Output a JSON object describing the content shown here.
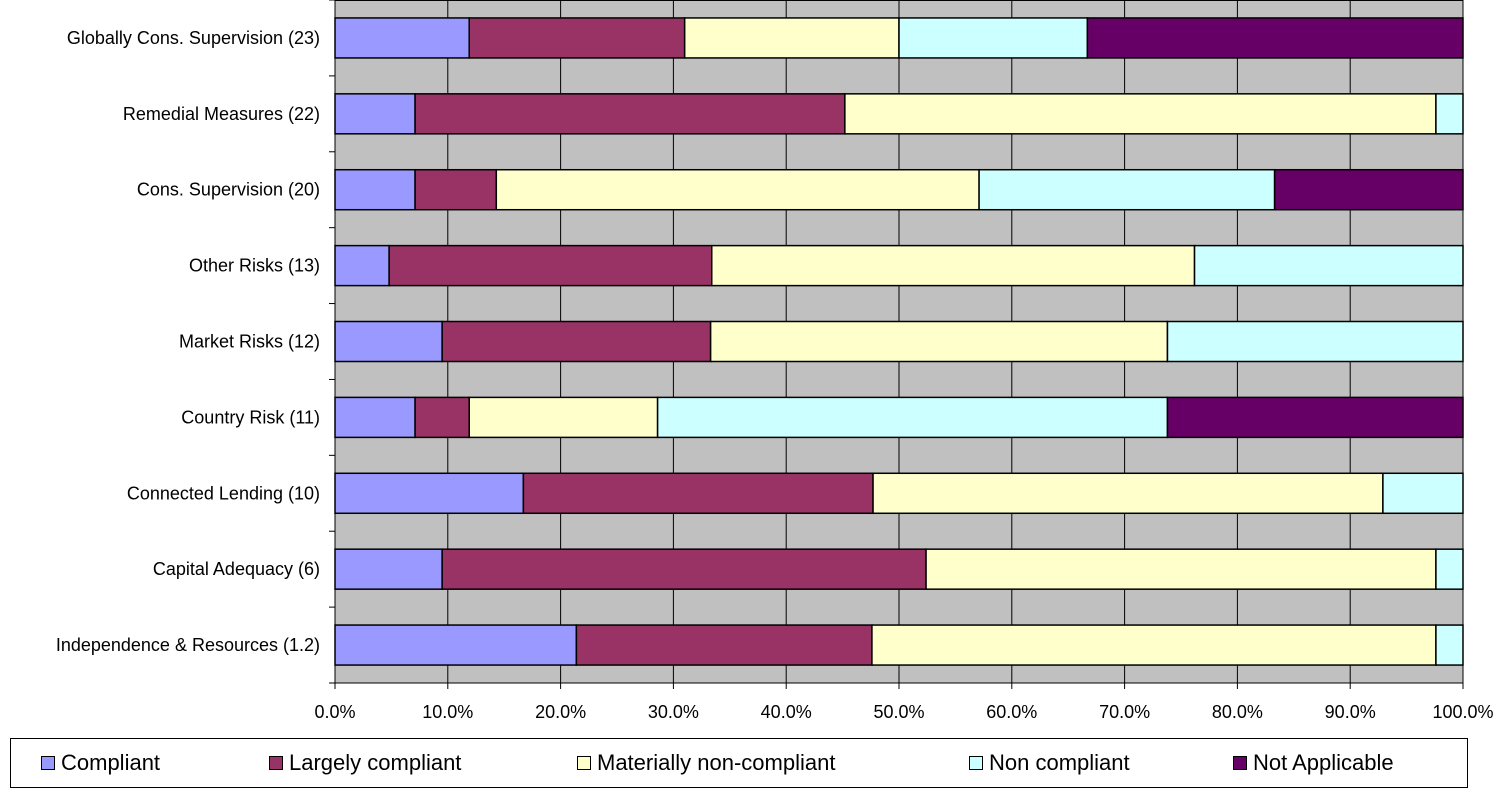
{
  "chart_data": {
    "type": "bar",
    "orientation": "horizontal",
    "stacked": "percent",
    "categories": [
      "Globally Cons. Supervision (23)",
      "Remedial Measures (22)",
      "Cons.  Supervision (20)",
      "Other Risks (13)",
      "Market Risks (12)",
      "Country Risk (11)",
      "Connected Lending (10)",
      "Capital Adequacy (6)",
      "Independence & Resources (1.2)"
    ],
    "series": [
      {
        "name": "Compliant",
        "color": "#9999ff",
        "values": [
          11.9,
          7.1,
          7.1,
          4.8,
          9.5,
          7.1,
          16.7,
          9.5,
          21.4
        ]
      },
      {
        "name": "Largely compliant",
        "color": "#993366",
        "values": [
          19.1,
          38.1,
          7.2,
          28.6,
          23.8,
          4.8,
          31.0,
          42.9,
          26.2
        ]
      },
      {
        "name": "Materially non-compliant",
        "color": "#ffffcc",
        "values": [
          19.0,
          52.4,
          42.8,
          42.8,
          40.5,
          16.7,
          45.2,
          45.2,
          50.0
        ]
      },
      {
        "name": "Non compliant",
        "color": "#ccffff",
        "values": [
          16.7,
          2.4,
          26.2,
          23.8,
          26.2,
          45.2,
          7.1,
          2.4,
          2.4
        ]
      },
      {
        "name": "Not Applicable",
        "color": "#660066",
        "values": [
          33.3,
          0,
          16.7,
          0,
          0,
          26.2,
          0,
          0,
          0
        ]
      }
    ],
    "xlim": [
      0,
      100
    ],
    "xticks": [
      "0.0%",
      "10.0%",
      "20.0%",
      "30.0%",
      "40.0%",
      "50.0%",
      "60.0%",
      "70.0%",
      "80.0%",
      "90.0%",
      "100.0%"
    ],
    "grid": true,
    "legend_position": "bottom",
    "plot_background": "#c0c0c0"
  }
}
